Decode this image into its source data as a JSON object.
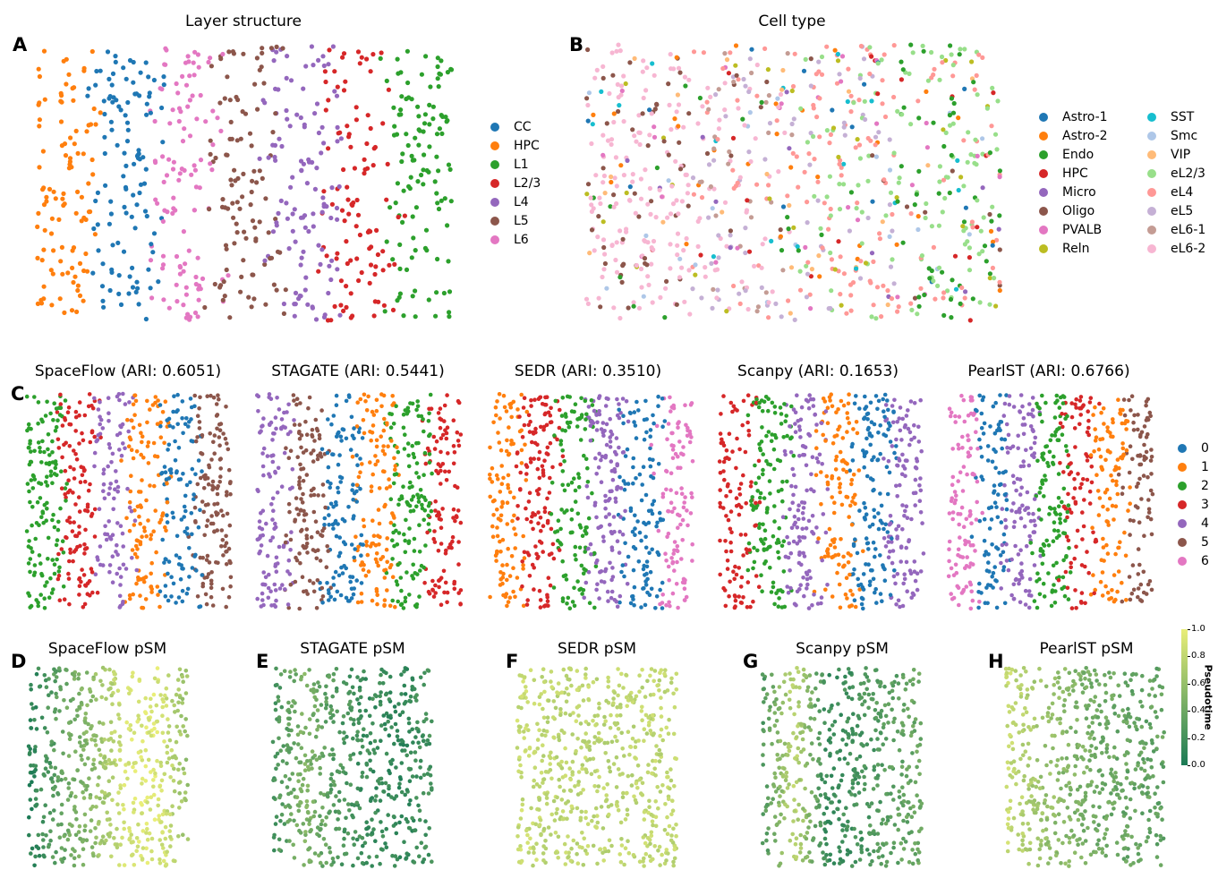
{
  "panels": {
    "A": {
      "letter": "A",
      "title": "Layer structure"
    },
    "B": {
      "letter": "B",
      "title": "Cell type"
    },
    "C": {
      "letter": "C"
    },
    "D": {
      "letter": "D",
      "title": "SpaceFlow pSM"
    },
    "E": {
      "letter": "E",
      "title": "STAGATE pSM"
    },
    "F": {
      "letter": "F",
      "title": "SEDR pSM"
    },
    "G": {
      "letter": "G",
      "title": "Scanpy pSM"
    },
    "H": {
      "letter": "H",
      "title": "PearlST pSM"
    }
  },
  "chart_data": [
    {
      "type": "scatter",
      "title": "Layer structure",
      "legend": [
        "CC",
        "HPC",
        "L1",
        "L2/3",
        "L4",
        "L5",
        "L6"
      ],
      "colors": {
        "CC": "#1f77b4",
        "HPC": "#ff7f0e",
        "L1": "#2ca02c",
        "L2/3": "#d62728",
        "L4": "#9467bd",
        "L5": "#8c564b",
        "L6": "#e377c2"
      },
      "bands_left_to_right": [
        "HPC",
        "CC",
        "L6",
        "L5",
        "L4",
        "L2/3",
        "L1"
      ],
      "axes": "off",
      "legend_position": "right"
    },
    {
      "type": "scatter",
      "title": "Cell type",
      "legend": [
        "Astro-1",
        "Astro-2",
        "Endo",
        "HPC",
        "Micro",
        "Oligo",
        "PVALB",
        "Reln",
        "SST",
        "Smc",
        "VIP",
        "eL2/3",
        "eL4",
        "eL5",
        "eL6-1",
        "eL6-2"
      ],
      "colors": {
        "Astro-1": "#1f77b4",
        "Astro-2": "#ff7f0e",
        "Endo": "#2ca02c",
        "HPC": "#d62728",
        "Micro": "#9467bd",
        "Oligo": "#8c564b",
        "PVALB": "#e377c2",
        "Reln": "#bcbd22",
        "SST": "#17becf",
        "Smc": "#aec7e8",
        "VIP": "#ffbb78",
        "eL2/3": "#98df8a",
        "eL4": "#ff9896",
        "eL5": "#c5b0d5",
        "eL6-1": "#c49c94",
        "eL6-2": "#f7b6d2"
      },
      "axes": "off",
      "legend_position": "right"
    },
    {
      "type": "scatter",
      "subplots": [
        {
          "title": "SpaceFlow (ARI: 0.6051)",
          "bands_left_to_right": [
            "2",
            "3",
            "4",
            "1",
            "0",
            "5"
          ]
        },
        {
          "title": "STAGATE (ARI: 0.5441)",
          "bands_left_to_right": [
            "4",
            "5",
            "0",
            "1",
            "2",
            "3"
          ]
        },
        {
          "title": "SEDR (ARI: 0.3510)",
          "bands_left_to_right": [
            "1",
            "3",
            "2",
            "4",
            "0",
            "6"
          ]
        },
        {
          "title": "Scanpy (ARI: 0.1653)",
          "bands_left_to_right": [
            "3",
            "2",
            "4",
            "1",
            "0",
            "4"
          ]
        },
        {
          "title": "PearlST (ARI: 0.6766)",
          "bands_left_to_right": [
            "6",
            "0",
            "4",
            "2",
            "3",
            "1",
            "5"
          ]
        }
      ],
      "legend": [
        "0",
        "1",
        "2",
        "3",
        "4",
        "5",
        "6"
      ],
      "colors": {
        "0": "#1f77b4",
        "1": "#ff7f0e",
        "2": "#2ca02c",
        "3": "#d62728",
        "4": "#9467bd",
        "5": "#8c564b",
        "6": "#e377c2"
      },
      "axes": "off",
      "legend_position": "right"
    },
    {
      "type": "scatter",
      "subplots": [
        {
          "title": "SpaceFlow pSM",
          "pseudotime_profile": [
            0.05,
            0.35,
            0.55,
            0.9,
            0.95,
            0.6
          ]
        },
        {
          "title": "STAGATE pSM",
          "pseudotime_profile": [
            0.2,
            0.5,
            0.25,
            0.15,
            0.1,
            0.2
          ]
        },
        {
          "title": "SEDR pSM",
          "pseudotime_profile": [
            0.85,
            0.8,
            0.8,
            0.78,
            0.8,
            0.8
          ]
        },
        {
          "title": "Scanpy pSM",
          "pseudotime_profile": [
            0.25,
            0.8,
            0.15,
            0.2,
            0.3,
            0.4
          ]
        },
        {
          "title": "PearlST pSM",
          "pseudotime_profile": [
            0.85,
            0.65,
            0.5,
            0.4,
            0.35,
            0.35
          ]
        }
      ],
      "colorbar": {
        "label": "Pseudotime",
        "ticks": [
          "0.0",
          "0.2",
          "0.4",
          "0.6",
          "0.8",
          "1.0"
        ],
        "range": [
          0,
          1
        ],
        "colors": [
          "#1b7a55",
          "#e9ee78"
        ]
      },
      "axes": "off"
    }
  ]
}
